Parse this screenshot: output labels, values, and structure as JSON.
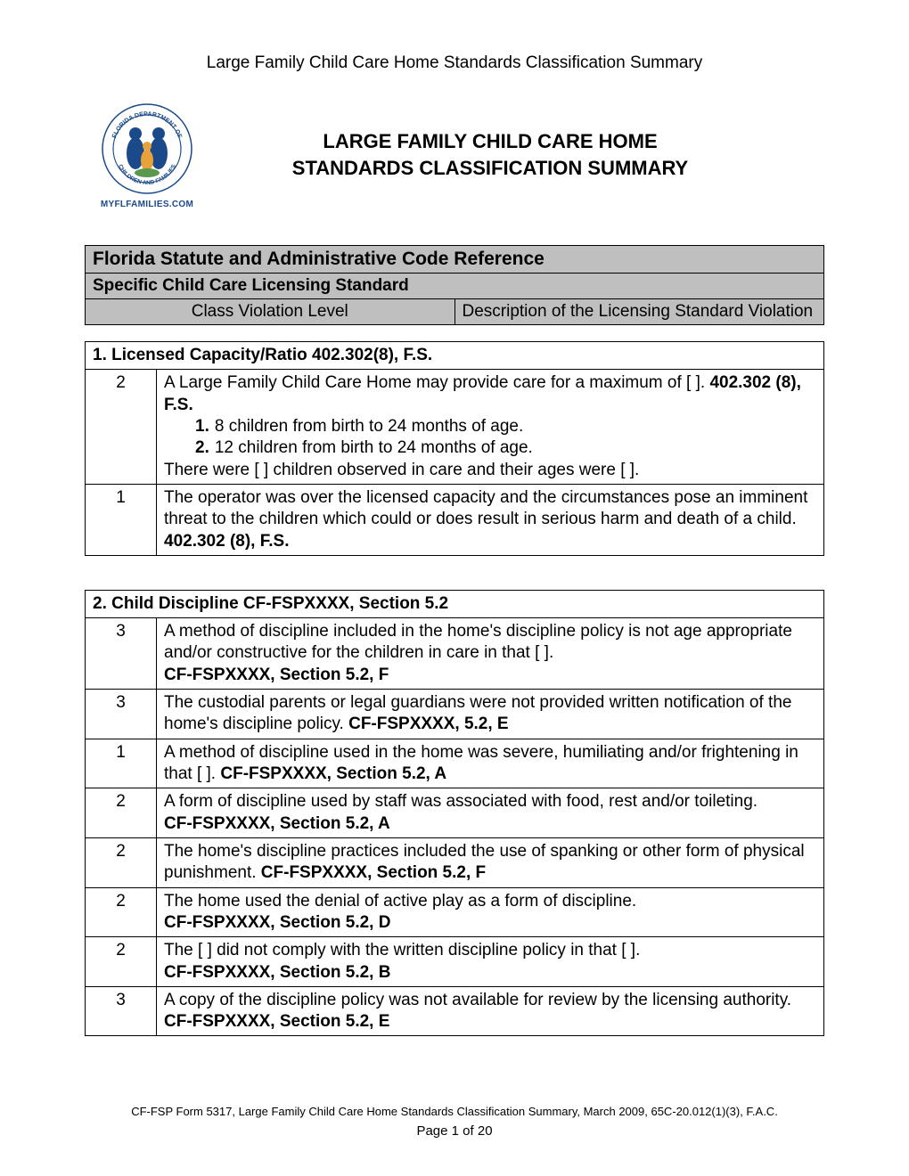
{
  "colors": {
    "background": "#ffffff",
    "text": "#000000",
    "header_gray": "#bfbfbf",
    "border": "#000000",
    "logo_blue": "#1a4a8a",
    "logo_orange": "#e8a23a",
    "logo_green": "#5a9850"
  },
  "typography": {
    "body_fontsize": 19,
    "title_fontsize": 22,
    "header_fontsize": 19,
    "footer_fontsize": 13
  },
  "header_title": "Large Family Child Care Home Standards Classification Summary",
  "logo": {
    "top_text": "FLORIDA DEPARTMENT",
    "bottom_text": "CHILDREN AND FAMILIES",
    "website": "MYFLFAMILIES.COM"
  },
  "main_title_line1": "LARGE FAMILY CHILD CARE HOME",
  "main_title_line2": "STANDARDS CLASSIFICATION SUMMARY",
  "reference_table": {
    "row1": "Florida Statute and Administrative Code Reference",
    "row2": "Specific Child Care Licensing Standard",
    "row3_left": "Class Violation Level",
    "row3_right": "Description of the Licensing Standard Violation"
  },
  "sections": [
    {
      "title": "1. Licensed Capacity/Ratio 402.302(8), F.S.",
      "rows": [
        {
          "level": "2",
          "content": [
            {
              "text": "A Large Family Child Care Home may provide care for a maximum of [ ]. ",
              "bold_suffix": "402.302 (8), F.S."
            },
            {
              "sublist": [
                {
                  "num": "1.",
                  "text": "8 children from birth to 24 months of age."
                },
                {
                  "num": "2.",
                  "text": "12 children from birth to 24 months of age."
                }
              ]
            },
            {
              "text": "There were [ ] children observed in care and their ages were [ ]."
            }
          ]
        },
        {
          "level": "1",
          "content": [
            {
              "text": "The operator was over the licensed capacity and the circumstances pose an imminent threat to the children which could or does result in serious harm and death of a child. ",
              "bold_suffix": "402.302 (8), F.S."
            }
          ]
        }
      ]
    },
    {
      "title": "2. Child Discipline CF-FSPXXXX, Section 5.2",
      "rows": [
        {
          "level": "3",
          "content": [
            {
              "text": "A method of discipline included in the home's discipline policy is not age appropriate and/or constructive for the children in care in that [ ]."
            },
            {
              "bold_line": "CF-FSPXXXX, Section 5.2, F"
            }
          ]
        },
        {
          "level": "3",
          "content": [
            {
              "text": "The custodial parents or legal guardians were not provided written notification of the home's discipline policy. ",
              "bold_suffix": "CF-FSPXXXX, 5.2, E"
            }
          ]
        },
        {
          "level": "1",
          "content": [
            {
              "text": "A method of discipline used in the home was severe, humiliating and/or frightening in that [ ]. ",
              "bold_suffix": "CF-FSPXXXX, Section 5.2, A"
            }
          ]
        },
        {
          "level": "2",
          "content": [
            {
              "text": "A form of discipline used by staff was associated with food, rest and/or toileting."
            },
            {
              "bold_line": "CF-FSPXXXX, Section 5.2, A"
            }
          ]
        },
        {
          "level": "2",
          "content": [
            {
              "text": "The home's discipline practices included the use of spanking or other form of physical punishment. ",
              "bold_suffix": "CF-FSPXXXX, Section 5.2, F"
            }
          ]
        },
        {
          "level": "2",
          "content": [
            {
              "text": "The home used the denial of active play as a form of discipline."
            },
            {
              "bold_line": "CF-FSPXXXX, Section 5.2, D"
            }
          ]
        },
        {
          "level": "2",
          "content": [
            {
              "text": "The [ ] did not comply with the written discipline policy in that [ ]."
            },
            {
              "bold_line": "CF-FSPXXXX, Section 5.2, B"
            }
          ]
        },
        {
          "level": "3",
          "content": [
            {
              "text": "A copy of the discipline policy was not available for review by the licensing authority. ",
              "bold_suffix": "CF-FSPXXXX, Section 5.2, E"
            }
          ]
        }
      ]
    }
  ],
  "footer": {
    "line1": "CF-FSP Form 5317, Large Family Child Care Home Standards Classification Summary, March 2009, 65C-20.012(1)(3), F.A.C.",
    "page_prefix": "Page ",
    "page_current": "1",
    "page_mid": " of ",
    "page_total": "20"
  }
}
